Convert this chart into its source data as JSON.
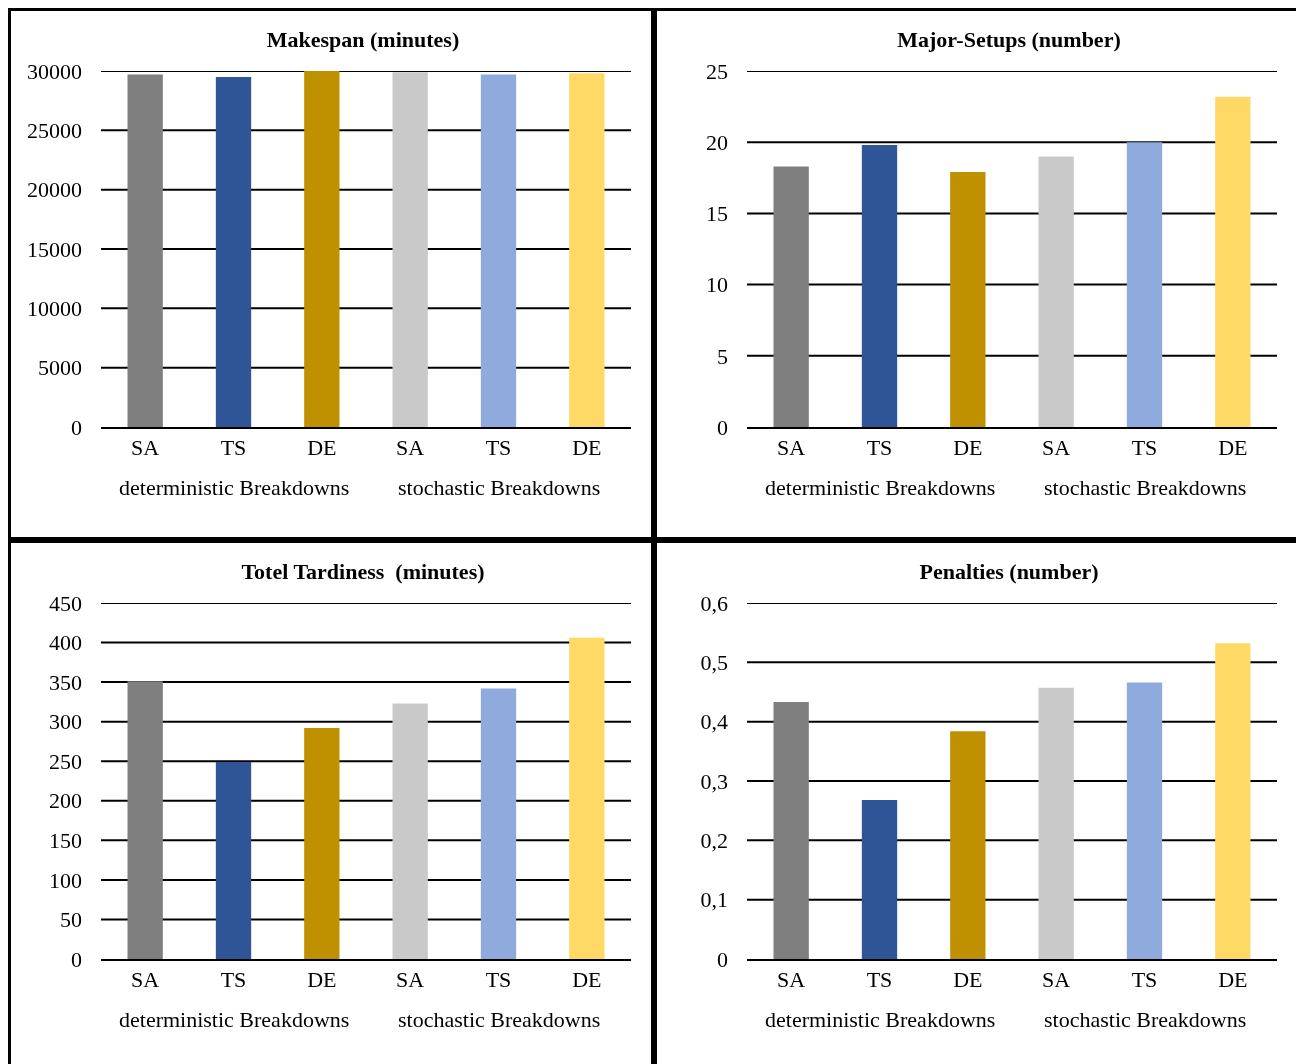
{
  "chart_data": [
    {
      "type": "bar",
      "title": "Makespan (minutes)",
      "categories": [
        "SA",
        "TS",
        "DE",
        "SA",
        "TS",
        "DE"
      ],
      "colors": [
        "#7f7f7f",
        "#2f5597",
        "#bf9000",
        "#c9c9c9",
        "#8faadc",
        "#ffd966"
      ],
      "values": [
        29700,
        29500,
        30000,
        29900,
        29700,
        29800
      ],
      "ylim": [
        0,
        30000
      ],
      "yticks": [
        0,
        5000,
        10000,
        15000,
        20000,
        25000,
        30000
      ],
      "grid": "y",
      "annotations": [
        "deterministic Breakdowns",
        "stochastic Breakdowns"
      ]
    },
    {
      "type": "bar",
      "title": "Major-Setups (number)",
      "categories": [
        "SA",
        "TS",
        "DE",
        "SA",
        "TS",
        "DE"
      ],
      "colors": [
        "#7f7f7f",
        "#2f5597",
        "#bf9000",
        "#c9c9c9",
        "#8faadc",
        "#ffd966"
      ],
      "values": [
        18.3,
        19.8,
        17.9,
        19.0,
        20.0,
        23.2
      ],
      "ylim": [
        0,
        25
      ],
      "yticks": [
        0,
        5,
        10,
        15,
        20,
        25
      ],
      "grid": "y",
      "annotations": [
        "deterministic Breakdowns",
        "stochastic Breakdowns"
      ]
    },
    {
      "type": "bar",
      "title": "Totel Tardiness  (minutes)",
      "categories": [
        "SA",
        "TS",
        "DE",
        "SA",
        "TS",
        "DE"
      ],
      "colors": [
        "#7f7f7f",
        "#2f5597",
        "#bf9000",
        "#c9c9c9",
        "#8faadc",
        "#ffd966"
      ],
      "values": [
        351,
        249,
        292,
        323,
        342,
        406
      ],
      "ylim": [
        0,
        450
      ],
      "yticks": [
        0,
        50,
        100,
        150,
        200,
        250,
        300,
        350,
        400,
        450
      ],
      "grid": "y",
      "annotations": [
        "deterministic Breakdowns",
        "stochastic Breakdowns"
      ]
    },
    {
      "type": "bar",
      "title": "Penalties (number)",
      "categories": [
        "SA",
        "TS",
        "DE",
        "SA",
        "TS",
        "DE"
      ],
      "colors": [
        "#7f7f7f",
        "#2f5597",
        "#bf9000",
        "#c9c9c9",
        "#8faadc",
        "#ffd966"
      ],
      "values": [
        0.433,
        0.268,
        0.384,
        0.457,
        0.466,
        0.532
      ],
      "ylim": [
        0,
        0.6
      ],
      "yticks": [
        0,
        {
          "value": 0.1,
          "label": "0,1"
        },
        {
          "value": 0.2,
          "label": "0,2"
        },
        {
          "value": 0.3,
          "label": "0,3"
        },
        {
          "value": 0.4,
          "label": "0,4"
        },
        {
          "value": 0.5,
          "label": "0,5"
        },
        {
          "value": 0.6,
          "label": "0,6"
        }
      ],
      "grid": "y",
      "annotations": [
        "deterministic Breakdowns",
        "stochastic Breakdowns"
      ]
    }
  ]
}
